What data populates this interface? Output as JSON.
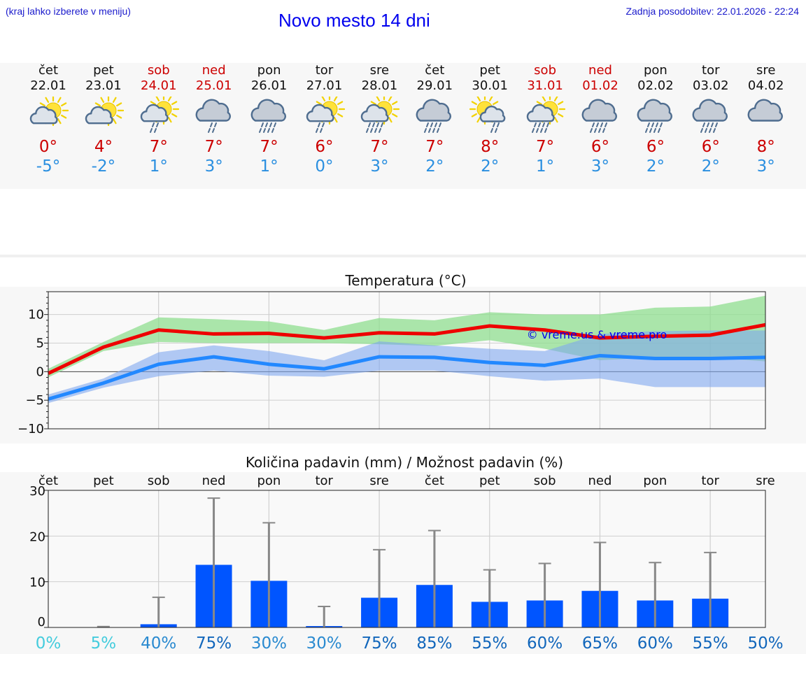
{
  "header": {
    "left_note": "(kraj lahko izberete v meniju)",
    "title": "Novo mesto 14 dni",
    "updated": "Zadnja posodobitev: 22.01.2026 - 22:24"
  },
  "days": [
    {
      "name": "čet",
      "date": "22.01",
      "weekend": false,
      "icon": "sun-cloud-icon",
      "tmax": "0°",
      "tmin": "-5°"
    },
    {
      "name": "pet",
      "date": "23.01",
      "weekend": false,
      "icon": "sun-cloud-icon",
      "tmax": "4°",
      "tmin": "-2°"
    },
    {
      "name": "sob",
      "date": "24.01",
      "weekend": true,
      "icon": "sun-rain-icon",
      "tmax": "7°",
      "tmin": "1°"
    },
    {
      "name": "ned",
      "date": "25.01",
      "weekend": true,
      "icon": "cloud-rain-icon",
      "tmax": "7°",
      "tmin": "3°"
    },
    {
      "name": "pon",
      "date": "26.01",
      "weekend": false,
      "icon": "cloud-heavy-rain-icon",
      "tmax": "7°",
      "tmin": "1°"
    },
    {
      "name": "tor",
      "date": "27.01",
      "weekend": false,
      "icon": "sun-rain-icon",
      "tmax": "6°",
      "tmin": "0°"
    },
    {
      "name": "sre",
      "date": "28.01",
      "weekend": false,
      "icon": "sun-heavy-rain-icon",
      "tmax": "7°",
      "tmin": "3°"
    },
    {
      "name": "čet",
      "date": "29.01",
      "weekend": false,
      "icon": "cloud-heavy-rain-icon",
      "tmax": "7°",
      "tmin": "2°"
    },
    {
      "name": "pet",
      "date": "30.01",
      "weekend": false,
      "icon": "sun-cloud-rain-icon",
      "tmax": "8°",
      "tmin": "2°"
    },
    {
      "name": "sob",
      "date": "31.01",
      "weekend": true,
      "icon": "sun-heavy-rain-icon",
      "tmax": "7°",
      "tmin": "1°"
    },
    {
      "name": "ned",
      "date": "01.02",
      "weekend": true,
      "icon": "cloud-heavy-rain-icon",
      "tmax": "6°",
      "tmin": "3°"
    },
    {
      "name": "pon",
      "date": "02.02",
      "weekend": false,
      "icon": "cloud-heavy-rain-icon",
      "tmax": "6°",
      "tmin": "2°"
    },
    {
      "name": "tor",
      "date": "03.02",
      "weekend": false,
      "icon": "cloud-heavy-rain-icon",
      "tmax": "6°",
      "tmin": "2°"
    },
    {
      "name": "sre",
      "date": "04.02",
      "weekend": false,
      "icon": "cloud-icon",
      "tmax": "8°",
      "tmin": "3°"
    }
  ],
  "colors": {
    "tmax": "#ee0000",
    "tmin": "#2288ff",
    "tmax_band": "#8fde8f",
    "tmin_band": "#7fa6ee",
    "bar": "#0055ff",
    "whisker": "#888888",
    "prob_low": "#44ccdd",
    "prob_high": "#1166bb"
  },
  "chart_data": [
    {
      "type": "line",
      "title": "Temperatura (°C)",
      "watermark": "© vreme.us & vreme.pro",
      "x": [
        0,
        1,
        2,
        3,
        4,
        5,
        6,
        7,
        8,
        9,
        10,
        11,
        12,
        13
      ],
      "ylim": [
        -10,
        14
      ],
      "yticks": [
        -10,
        -5,
        0,
        5,
        10
      ],
      "ytick_labels": [
        "−10",
        "−5",
        "0",
        "5",
        "10"
      ],
      "grid": true,
      "series": [
        {
          "name": "max",
          "values": [
            -0.3,
            4.3,
            7.3,
            6.6,
            6.7,
            5.9,
            6.8,
            6.6,
            8.0,
            7.3,
            5.9,
            6.2,
            6.4,
            8.2
          ],
          "band_low": [
            -1.0,
            3.6,
            5.2,
            5.0,
            5.0,
            5.0,
            4.8,
            4.5,
            5.5,
            4.0,
            2.0,
            2.5,
            2.5,
            1.8
          ],
          "band_high": [
            0.5,
            5.2,
            9.5,
            9.2,
            8.8,
            7.3,
            9.4,
            9.0,
            10.4,
            10.0,
            10.0,
            11.2,
            11.4,
            13.3
          ]
        },
        {
          "name": "min",
          "values": [
            -4.8,
            -2.0,
            1.3,
            2.6,
            1.3,
            0.5,
            2.6,
            2.5,
            1.6,
            1.1,
            2.8,
            2.3,
            2.3,
            2.5
          ],
          "band_low": [
            -5.5,
            -2.8,
            -0.8,
            0.2,
            -0.7,
            -0.9,
            0.2,
            0.2,
            -0.8,
            -1.6,
            -1.2,
            -2.7,
            -2.7,
            -2.7
          ],
          "band_high": [
            -4.0,
            -1.2,
            3.4,
            4.6,
            3.6,
            2.0,
            5.3,
            4.6,
            4.0,
            3.6,
            6.6,
            7.1,
            7.2,
            7.2
          ]
        }
      ]
    },
    {
      "type": "bar",
      "title": "Količina padavin (mm) / Možnost padavin (%)",
      "categories": [
        "čet",
        "pet",
        "sob",
        "ned",
        "pon",
        "tor",
        "sre",
        "čet",
        "pet",
        "sob",
        "ned",
        "pon",
        "tor",
        "sre"
      ],
      "values": [
        0,
        0,
        0.7,
        13.7,
        10.2,
        0.3,
        6.5,
        9.3,
        5.6,
        5.9,
        8.0,
        5.9,
        6.3,
        0
      ],
      "error_high": [
        0,
        0.2,
        6.6,
        28.3,
        22.9,
        4.6,
        17.0,
        21.2,
        12.6,
        14.0,
        18.6,
        14.2,
        16.4,
        0
      ],
      "ylim": [
        0,
        30
      ],
      "yticks": [
        0,
        10,
        20,
        30
      ],
      "probabilities": [
        "0%",
        "5%",
        "40%",
        "75%",
        "30%",
        "30%",
        "75%",
        "85%",
        "55%",
        "60%",
        "65%",
        "60%",
        "55%",
        "50%"
      ],
      "prob_values": [
        0,
        5,
        40,
        75,
        30,
        30,
        75,
        85,
        55,
        60,
        65,
        60,
        55,
        50
      ]
    }
  ]
}
